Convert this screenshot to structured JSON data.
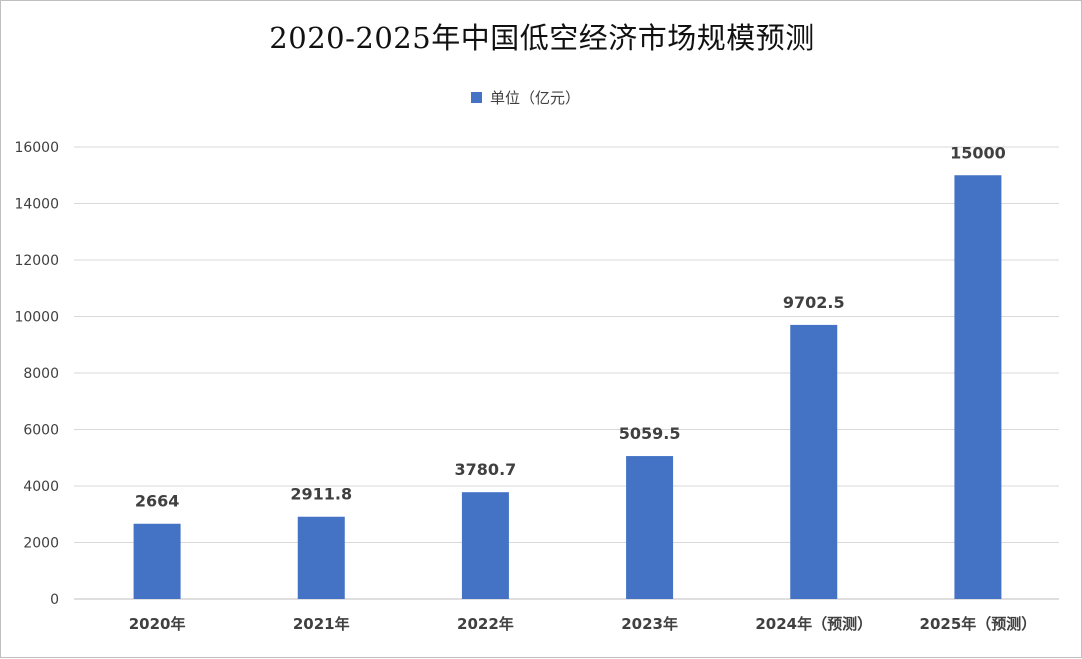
{
  "chart_data": {
    "type": "bar",
    "title": "2020-2025年中国低空经济市场规模预测",
    "categories": [
      "2020年",
      "2021年",
      "2022年",
      "2023年",
      "2024年（预测）",
      "2025年（预测）"
    ],
    "series": [
      {
        "name": "单位（亿元）",
        "values": [
          2664,
          2911.8,
          3780.7,
          5059.5,
          9702.5,
          15000
        ]
      }
    ],
    "data_labels": [
      "2664",
      "2911.8",
      "3780.7",
      "5059.5",
      "9702.5",
      "15000"
    ],
    "y_ticks": [
      "0",
      "2000",
      "4000",
      "6000",
      "8000",
      "10000",
      "12000",
      "14000",
      "16000"
    ],
    "ylim": [
      0,
      16000
    ],
    "grid": true,
    "legend_position": "top-center",
    "bar_color": "#4472c4"
  }
}
